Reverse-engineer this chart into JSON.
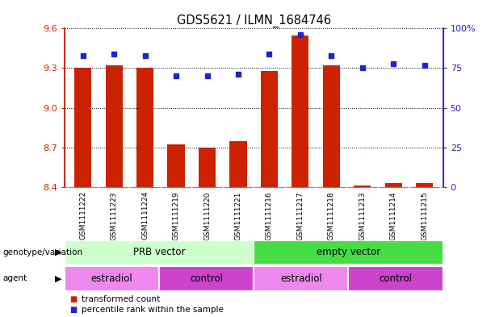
{
  "title": "GDS5621 / ILMN_1684746",
  "samples": [
    "GSM1111222",
    "GSM1111223",
    "GSM1111224",
    "GSM1111219",
    "GSM1111220",
    "GSM1111221",
    "GSM1111216",
    "GSM1111217",
    "GSM1111218",
    "GSM1111213",
    "GSM1111214",
    "GSM1111215"
  ],
  "transformed_count": [
    9.3,
    9.32,
    9.3,
    8.72,
    8.7,
    8.75,
    9.28,
    9.55,
    9.32,
    8.41,
    8.43,
    8.43
  ],
  "percentile_rank": [
    83,
    84,
    83,
    70,
    70,
    71,
    84,
    96,
    83,
    75,
    78,
    77
  ],
  "ylim_left": [
    8.4,
    9.6
  ],
  "ylim_right": [
    0,
    100
  ],
  "yticks_left": [
    8.4,
    8.7,
    9.0,
    9.3,
    9.6
  ],
  "yticks_right": [
    0,
    25,
    50,
    75,
    100
  ],
  "bar_color": "#cc2200",
  "dot_color": "#2222cc",
  "plot_bg": "#ffffff",
  "tick_bg": "#d8d8d8",
  "genotype_groups": [
    {
      "label": "PRB vector",
      "start": 0,
      "end": 6,
      "color": "#ccffcc"
    },
    {
      "label": "empty vector",
      "start": 6,
      "end": 12,
      "color": "#44dd44"
    }
  ],
  "agent_groups": [
    {
      "label": "estradiol",
      "start": 0,
      "end": 3,
      "color": "#ee88ee"
    },
    {
      "label": "control",
      "start": 3,
      "end": 6,
      "color": "#cc44cc"
    },
    {
      "label": "estradiol",
      "start": 6,
      "end": 9,
      "color": "#ee88ee"
    },
    {
      "label": "control",
      "start": 9,
      "end": 12,
      "color": "#cc44cc"
    }
  ],
  "legend_items": [
    {
      "label": "transformed count",
      "color": "#cc2200",
      "marker": "s"
    },
    {
      "label": "percentile rank within the sample",
      "color": "#2222cc",
      "marker": "s"
    }
  ],
  "left_axis_color": "#cc2200",
  "right_axis_color": "#2222cc",
  "label_geno": "genotype/variation",
  "label_agent": "agent"
}
